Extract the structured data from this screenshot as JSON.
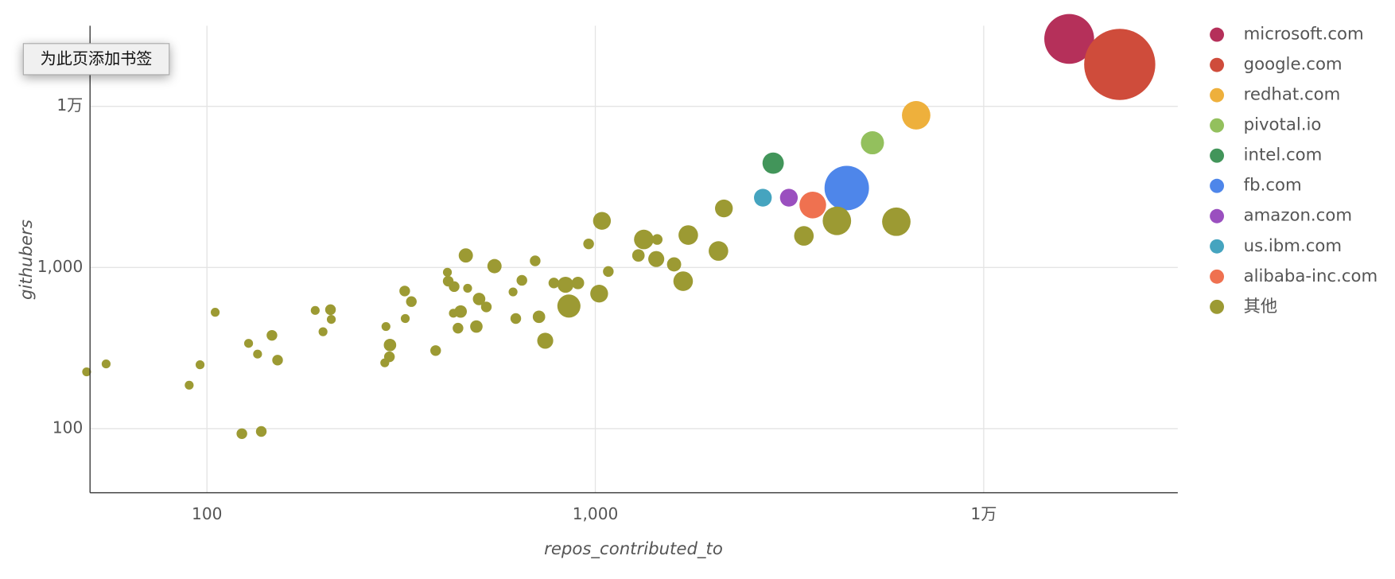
{
  "bookmark_button": "为此页添加书签",
  "chart_data": {
    "type": "bubble",
    "x_label": "repos_contributed_to",
    "y_label": "githubers",
    "xscale": "log",
    "yscale": "log",
    "grid": true,
    "legend": "right",
    "xlim": [
      50,
      31600
    ],
    "ylim": [
      40,
      31600
    ],
    "xticks": [
      100,
      {
        "value": 1000,
        "label": "1,000"
      },
      {
        "value": 10000,
        "label": "1万"
      }
    ],
    "yticks": [
      100,
      {
        "value": 1000,
        "label": "1,000"
      },
      {
        "value": 10000,
        "label": "1万"
      }
    ],
    "series": [
      {
        "name": "microsoft.com",
        "color": "#b5305a",
        "x": [
          16600
        ],
        "values": [
          26200
        ],
        "sizes": [
          784
        ]
      },
      {
        "name": "google.com",
        "color": "#cf4c3b",
        "x": [
          22400
        ],
        "values": [
          18200
        ],
        "sizes": [
          1600
        ]
      },
      {
        "name": "redhat.com",
        "color": "#eeb03c",
        "x": [
          6700
        ],
        "values": [
          8800
        ],
        "sizes": [
          256
        ]
      },
      {
        "name": "pivotal.io",
        "color": "#93c05d",
        "x": [
          5170
        ],
        "values": [
          5940
        ],
        "sizes": [
          169
        ]
      },
      {
        "name": "intel.com",
        "color": "#42955a",
        "x": [
          2870
        ],
        "values": [
          4440
        ],
        "sizes": [
          144
        ]
      },
      {
        "name": "fb.com",
        "color": "#4e86ea",
        "x": [
          4440
        ],
        "values": [
          3110
        ],
        "sizes": [
          625
        ]
      },
      {
        "name": "amazon.com",
        "color": "#9a4fbf",
        "x": [
          3150
        ],
        "values": [
          2710
        ],
        "sizes": [
          100
        ]
      },
      {
        "name": "us.ibm.com",
        "color": "#45a4bf",
        "x": [
          2700
        ],
        "values": [
          2710
        ],
        "sizes": [
          100
        ]
      },
      {
        "name": "alibaba-inc.com",
        "color": "#ef7150",
        "x": [
          3630
        ],
        "values": [
          2440
        ],
        "sizes": [
          225
        ]
      },
      {
        "name": "其他",
        "color": "#9c9a33",
        "x": [
          49,
          55,
          90,
          96,
          105,
          123,
          128,
          138,
          135,
          147,
          152,
          190,
          199,
          208,
          209,
          289,
          287,
          296,
          295,
          323,
          324,
          336,
          388,
          416,
          418,
          431,
          433,
          443,
          450,
          464,
          469,
          494,
          502,
          524,
          550,
          614,
          624,
          647,
          700,
          716,
          743,
          782,
          838,
          855,
          902,
          961,
          1023,
          1040,
          1080,
          1291,
          1333,
          1435,
          1443,
          1595,
          1683,
          1735,
          2075,
          2143,
          3444,
          4188,
          5957
        ],
        "values": [
          225,
          252,
          186,
          249,
          527,
          93,
          338,
          96,
          290,
          379,
          266,
          541,
          399,
          547,
          476,
          430,
          256,
          330,
          279,
          714,
          482,
          614,
          305,
          933,
          822,
          520,
          761,
          420,
          533,
          1187,
          743,
          430,
          637,
          569,
          1019,
          705,
          482,
          832,
          1099,
          494,
          351,
          801,
          781,
          576,
          801,
          1400,
          688,
          1946,
          944,
          1187,
          1492,
          1128,
          1492,
          1045,
          822,
          1589,
          1265,
          2325,
          1570,
          1946,
          1922
        ],
        "sizes": [
          25,
          25,
          25,
          25,
          25,
          36,
          25,
          36,
          25,
          36,
          36,
          25,
          25,
          36,
          25,
          25,
          25,
          49,
          36,
          36,
          25,
          36,
          36,
          25,
          36,
          25,
          36,
          36,
          49,
          64,
          25,
          49,
          49,
          36,
          64,
          25,
          36,
          36,
          36,
          49,
          81,
          36,
          81,
          169,
          49,
          36,
          100,
          100,
          36,
          49,
          121,
          81,
          36,
          64,
          121,
          121,
          121,
          100,
          121,
          256,
          256
        ]
      }
    ]
  }
}
